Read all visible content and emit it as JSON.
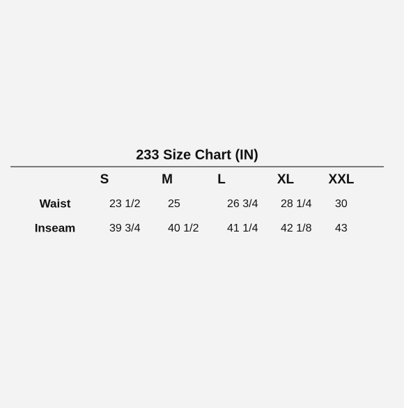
{
  "title": "233 Size Chart (IN)",
  "table": {
    "columns": [
      "S",
      "M",
      "L",
      "XL",
      "XXL"
    ],
    "rows": [
      {
        "label": "Waist",
        "cells": [
          "23 1/2",
          "25",
          "26 3/4",
          "28 1/4",
          "30"
        ]
      },
      {
        "label": "Inseam",
        "cells": [
          "39 3/4",
          "40 1/2",
          "41 1/4",
          "42 1/8",
          "43"
        ]
      }
    ]
  }
}
